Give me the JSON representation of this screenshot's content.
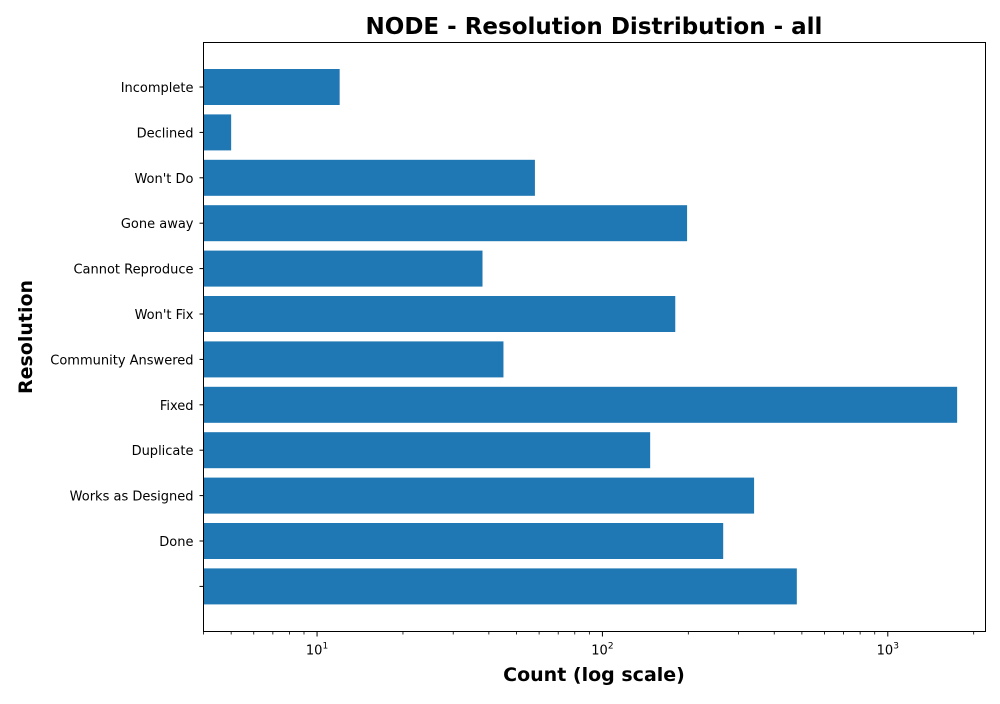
{
  "chart_data": {
    "type": "bar",
    "orientation": "horizontal",
    "title": "NODE - Resolution Distribution - all",
    "xlabel": "Count (log scale)",
    "ylabel": "Resolution",
    "xscale": "log",
    "xlim": [
      4,
      2200
    ],
    "x_ticks": [
      {
        "value": 10,
        "base": "10",
        "exp": "1"
      },
      {
        "value": 100,
        "base": "10",
        "exp": "2"
      },
      {
        "value": 1000,
        "base": "10",
        "exp": "3"
      }
    ],
    "categories": [
      "Incomplete",
      "Declined",
      "Won't Do",
      "Gone away",
      "Cannot Reproduce",
      "Won't Fix",
      "Community Answered",
      "Fixed",
      "Duplicate",
      "Works as Designed",
      "Done",
      ""
    ],
    "values": [
      12,
      5,
      58,
      198,
      38,
      180,
      45,
      1750,
      147,
      340,
      265,
      480
    ],
    "bar_color": "#1f77b4",
    "grid": false,
    "legend": "none"
  }
}
